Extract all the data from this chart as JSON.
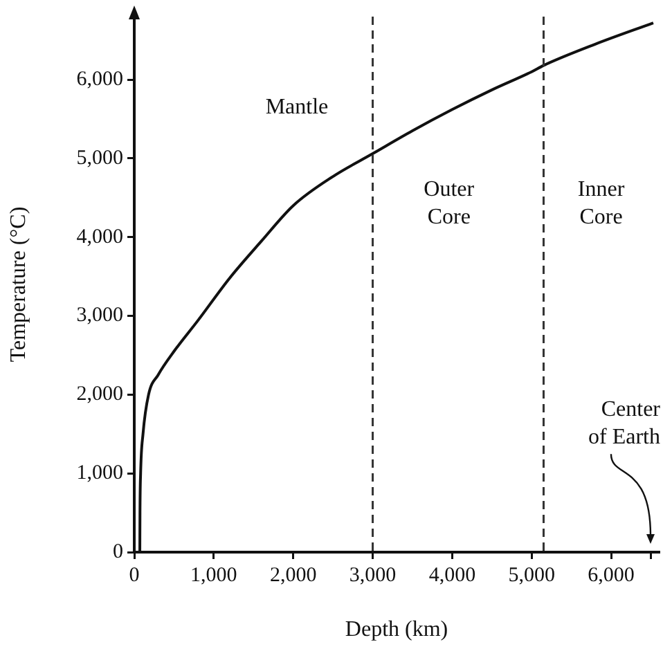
{
  "chart_data": {
    "type": "line",
    "xlabel": "Depth (km)",
    "ylabel": "Temperature (°C)",
    "x": [
      70,
      72,
      80,
      110,
      180,
      300,
      500,
      800,
      1200,
      1600,
      2000,
      2500,
      3000,
      3500,
      4000,
      4500,
      5000,
      5150,
      5800,
      6530
    ],
    "series": [
      {
        "color": "#111111",
        "values": [
          0,
          500,
          1000,
          1500,
          2000,
          2250,
          2550,
          2940,
          3480,
          3950,
          4400,
          4770,
          5060,
          5350,
          5620,
          5870,
          6100,
          6180,
          6450,
          6720
        ]
      }
    ],
    "xlim": [
      0,
      6600
    ],
    "xticks": [
      {
        "value": 0,
        "label": "0"
      },
      {
        "value": 1000,
        "label": "1,000"
      },
      {
        "value": 2000,
        "label": "2,000"
      },
      {
        "value": 3000,
        "label": "3,000"
      },
      {
        "value": 4000,
        "label": "4,000"
      },
      {
        "value": 5000,
        "label": "5,000"
      },
      {
        "value": 6000,
        "label": "6,000"
      },
      {
        "value": 6500,
        "label": null
      }
    ],
    "ylim": [
      0,
      6800
    ],
    "yticks": [
      {
        "value": 0,
        "label": "0"
      },
      {
        "value": 1000,
        "label": "1,000"
      },
      {
        "value": 2000,
        "label": "2,000"
      },
      {
        "value": 3000,
        "label": "3,000"
      },
      {
        "value": 4000,
        "label": "4,000"
      },
      {
        "value": 5000,
        "label": "5,000"
      },
      {
        "value": 6000,
        "label": "6,000"
      }
    ],
    "ref_lines": [
      {
        "axis": "x",
        "value": 3000,
        "color": "#333333",
        "line_style": "dashed"
      },
      {
        "axis": "x",
        "value": 5150,
        "color": "#333333",
        "line_style": "dashed"
      }
    ],
    "annotations": [
      "Mantle",
      "Outer\nCore",
      "Inner\nCore",
      "Center\nof Earth"
    ],
    "grid": false,
    "legend": false,
    "marker": "none",
    "line_style": "solid"
  }
}
